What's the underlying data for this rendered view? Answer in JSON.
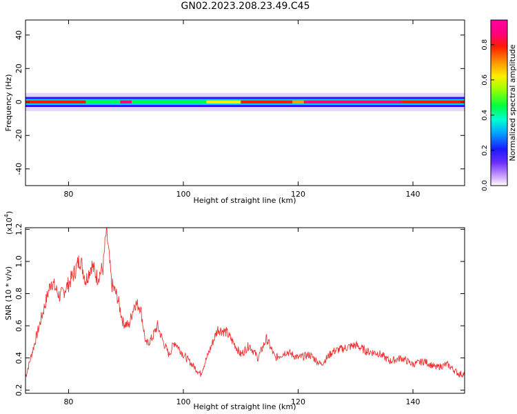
{
  "title": "GN02.2023.208.23.49.C45",
  "chart_data": [
    {
      "type": "heatmap",
      "xlabel": "Height of straight line (km)",
      "ylabel": "Frequency (Hz)",
      "xlim": [
        72.5,
        149
      ],
      "ylim": [
        -50,
        49
      ],
      "xticks": [
        80,
        100,
        120,
        140
      ],
      "yticks": [
        40,
        20,
        0,
        -20,
        -40
      ],
      "band_center_hz": 0,
      "band_halfwidth_hz": 3,
      "ridge_segments": [
        {
          "x": [
            72.5,
            83
          ],
          "level": 0.8
        },
        {
          "x": [
            83,
            89
          ],
          "level": 0.45
        },
        {
          "x": [
            89,
            91
          ],
          "level": 0.9
        },
        {
          "x": [
            91,
            104
          ],
          "level": 0.45
        },
        {
          "x": [
            104,
            110
          ],
          "level": 0.6
        },
        {
          "x": [
            110,
            119
          ],
          "level": 0.8
        },
        {
          "x": [
            119,
            121
          ],
          "level": 0.7
        },
        {
          "x": [
            121,
            138
          ],
          "level": 0.88
        },
        {
          "x": [
            138,
            149
          ],
          "level": 0.75
        }
      ],
      "colorbar": {
        "label": "Normalized spectral amplitude",
        "ticks": [
          0.0,
          0.2,
          0.4,
          0.6,
          0.8
        ],
        "range": [
          0,
          0.94
        ]
      }
    },
    {
      "type": "line",
      "xlabel": "Height of straight line (km)",
      "ylabel": "SNR (10 * v/v)",
      "multiplier_label": "(x10",
      "multiplier_exp": "4",
      "multiplier_close": ")",
      "xlim": [
        72.5,
        149
      ],
      "ylim": [
        0.18,
        1.21
      ],
      "xticks": [
        80,
        100,
        120,
        140
      ],
      "yticks": [
        0.2,
        0.4,
        0.6,
        0.8,
        1.0,
        1.2
      ],
      "color": "#ee3333",
      "x": [
        72.5,
        74,
        75.5,
        77,
        78.5,
        80,
        81,
        82,
        83,
        84,
        85,
        86,
        86.6,
        87.5,
        88.5,
        89.5,
        90.5,
        91.5,
        92.5,
        93.5,
        94.5,
        95.5,
        96.5,
        97.5,
        98.5,
        100,
        101.5,
        103,
        104.5,
        106,
        107.5,
        109,
        110,
        111.5,
        113,
        114.5,
        116,
        118,
        120,
        122,
        124,
        126,
        128,
        130,
        132,
        134,
        136,
        138,
        140,
        142,
        144,
        146,
        148,
        149
      ],
      "y": [
        0.28,
        0.48,
        0.68,
        0.88,
        0.78,
        0.86,
        0.93,
        1.02,
        0.88,
        0.98,
        0.9,
        0.96,
        1.2,
        0.86,
        0.78,
        0.62,
        0.6,
        0.74,
        0.72,
        0.48,
        0.52,
        0.6,
        0.5,
        0.42,
        0.5,
        0.42,
        0.36,
        0.3,
        0.44,
        0.58,
        0.56,
        0.48,
        0.42,
        0.48,
        0.4,
        0.52,
        0.4,
        0.44,
        0.4,
        0.42,
        0.36,
        0.44,
        0.46,
        0.48,
        0.44,
        0.43,
        0.38,
        0.4,
        0.36,
        0.38,
        0.34,
        0.36,
        0.3,
        0.3
      ]
    }
  ]
}
